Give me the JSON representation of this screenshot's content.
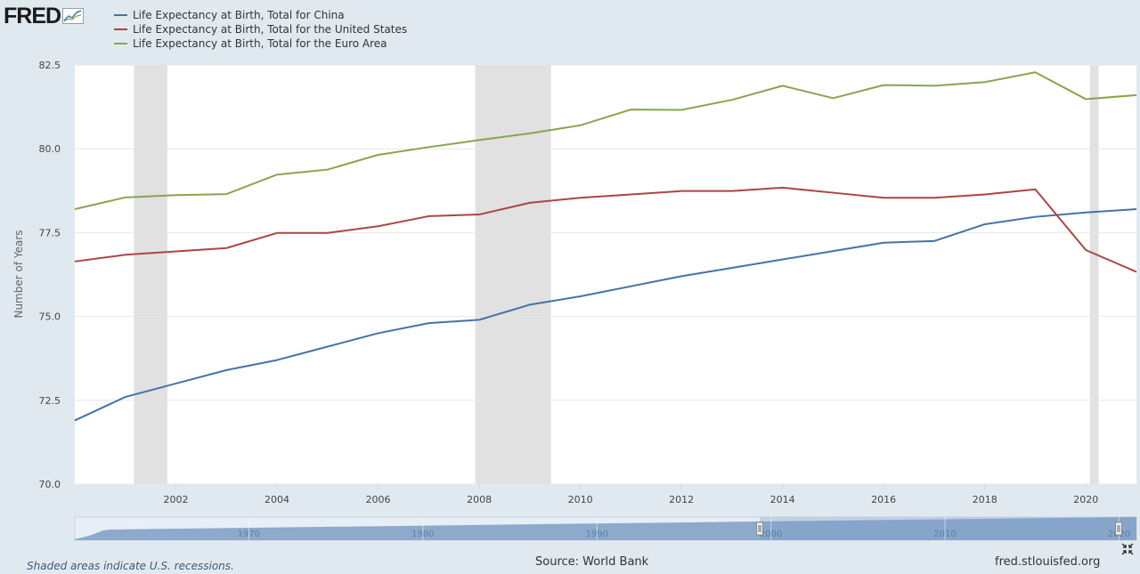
{
  "logo": {
    "text": "FRED",
    "icon": "fred-chart-logo-icon"
  },
  "footer": {
    "recession_note": "Shaded areas indicate U.S. recessions.",
    "source": "Source: World Bank",
    "site": "fred.stlouisfed.org"
  },
  "colors": {
    "china": "#4572a7",
    "us": "#aa4643",
    "euro": "#89a54e",
    "recession": "#e1e1e1",
    "navigator": "#7d9dc6"
  },
  "chart_data": {
    "type": "line",
    "title": "",
    "xlabel": "",
    "ylabel": "Number of Years",
    "x": [
      2000,
      2001,
      2002,
      2003,
      2004,
      2005,
      2006,
      2007,
      2008,
      2009,
      2010,
      2011,
      2012,
      2013,
      2014,
      2015,
      2016,
      2017,
      2018,
      2019,
      2020,
      2021
    ],
    "xlim": [
      2000,
      2021
    ],
    "ylim": [
      70.0,
      82.5
    ],
    "xticks": [
      "2002",
      "2004",
      "2006",
      "2008",
      "2010",
      "2012",
      "2014",
      "2016",
      "2018",
      "2020"
    ],
    "yticks": [
      "70.0",
      "72.5",
      "75.0",
      "77.5",
      "80.0",
      "82.5"
    ],
    "recessions": [
      [
        2001.17,
        2001.83
      ],
      [
        2007.92,
        2009.42
      ],
      [
        2020.08,
        2020.25
      ]
    ],
    "series": [
      {
        "name": "Life Expectancy at Birth, Total for China",
        "color": "#4572a7",
        "values": [
          71.9,
          72.6,
          73.0,
          73.4,
          73.7,
          74.1,
          74.5,
          74.8,
          74.9,
          75.35,
          75.6,
          75.9,
          76.2,
          76.45,
          76.7,
          76.95,
          77.2,
          77.25,
          77.75,
          77.97,
          78.1,
          78.2
        ]
      },
      {
        "name": "Life Expectancy at Birth, Total for the United States",
        "color": "#aa4643",
        "values": [
          76.64,
          76.84,
          76.94,
          77.04,
          77.49,
          77.49,
          77.69,
          77.99,
          78.04,
          78.39,
          78.54,
          78.64,
          78.74,
          78.74,
          78.84,
          78.69,
          78.54,
          78.54,
          78.64,
          78.79,
          76.98,
          76.33
        ]
      },
      {
        "name": "Life Expectancy at Birth, Total for the Euro Area",
        "color": "#89a54e",
        "values": [
          78.2,
          78.55,
          78.62,
          78.65,
          79.23,
          79.38,
          79.82,
          80.05,
          80.26,
          80.46,
          80.7,
          81.17,
          81.16,
          81.46,
          81.88,
          81.51,
          81.9,
          81.88,
          81.99,
          82.28,
          81.48,
          81.6
        ]
      }
    ],
    "navigator": {
      "tick_labels": [
        "1970",
        "1980",
        "1990",
        "2000",
        "2010",
        "2020"
      ]
    }
  }
}
